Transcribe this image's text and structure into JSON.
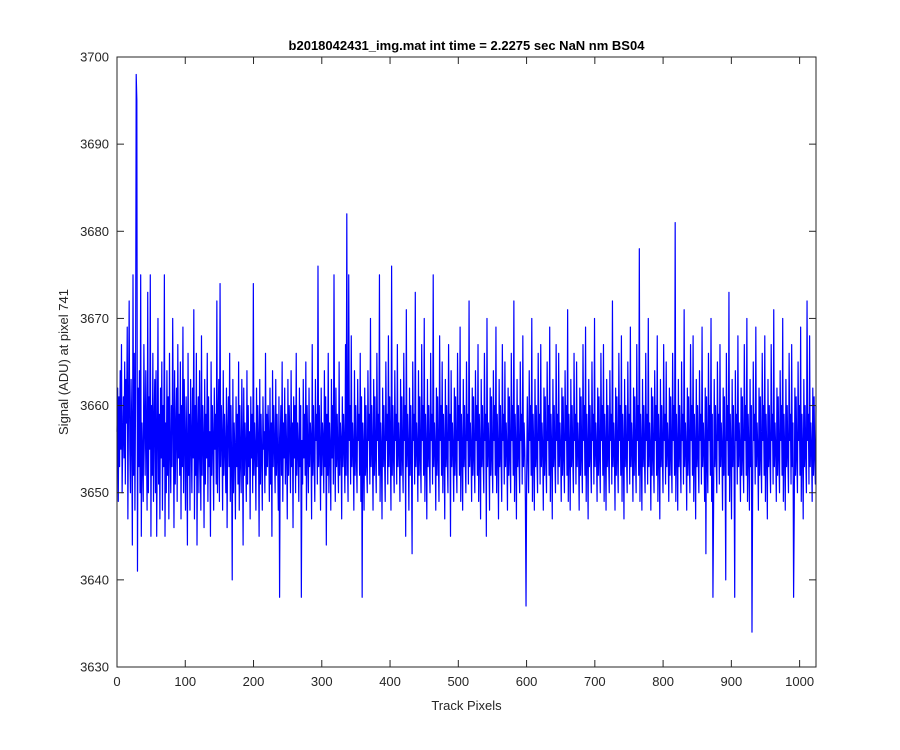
{
  "chart_data": {
    "type": "line",
    "title": "b2018042431_img.mat int time = 2.2275 sec  NaN nm BS04",
    "xlabel": "Track Pixels",
    "ylabel": "Signal (ADU) at pixel 741",
    "xlim": [
      0,
      1024
    ],
    "ylim": [
      3630,
      3700
    ],
    "xticks": [
      0,
      100,
      200,
      300,
      400,
      500,
      600,
      700,
      800,
      900,
      1000
    ],
    "yticks": [
      3630,
      3640,
      3650,
      3660,
      3670,
      3680,
      3690,
      3700
    ],
    "grid": false,
    "series": [
      {
        "color": "#0000ff",
        "y": [
          3657,
          3662,
          3649,
          3661,
          3653,
          3664,
          3655,
          3667,
          3650,
          3656,
          3661,
          3654,
          3665,
          3651,
          3663,
          3658,
          3669,
          3647,
          3660,
          3672,
          3655,
          3650,
          3663,
          3657,
          3644,
          3675,
          3652,
          3666,
          3648,
          3661,
          3698,
          3695,
          3641,
          3662,
          3653,
          3664,
          3650,
          3675,
          3645,
          3658,
          3654,
          3649,
          3667,
          3658,
          3652,
          3664,
          3656,
          3648,
          3673,
          3650,
          3661,
          3655,
          3675,
          3645,
          3660,
          3652,
          3666,
          3649,
          3658,
          3663,
          3650,
          3664,
          3645,
          3656,
          3670,
          3651,
          3659,
          3647,
          3662,
          3654,
          3665,
          3648,
          3660,
          3653,
          3675,
          3645,
          3658,
          3650,
          3664,
          3652,
          3661,
          3647,
          3666,
          3655,
          3650,
          3660,
          3653,
          3670,
          3658,
          3646,
          3664,
          3651,
          3657,
          3662,
          3649,
          3667,
          3654,
          3659,
          3652,
          3665,
          3647,
          3660,
          3653,
          3669,
          3650,
          3663,
          3656,
          3648,
          3661,
          3655,
          3644,
          3666,
          3652,
          3659,
          3648,
          3663,
          3656,
          3650,
          3662,
          3654,
          3671,
          3647,
          3660,
          3652,
          3666,
          3644,
          3657,
          3661,
          3650,
          3664,
          3655,
          3648,
          3668,
          3652,
          3660,
          3656,
          3646,
          3663,
          3651,
          3659,
          3654,
          3666,
          3649,
          3661,
          3653,
          3657,
          3645,
          3665,
          3652,
          3660,
          3656,
          3648,
          3662,
          3655,
          3659,
          3651,
          3672,
          3650,
          3658,
          3663,
          3649,
          3674,
          3653,
          3660,
          3656,
          3648,
          3664,
          3652,
          3659,
          3655,
          3650,
          3662,
          3646,
          3657,
          3661,
          3653,
          3666,
          3649,
          3660,
          3654,
          3640,
          3663,
          3650,
          3658,
          3655,
          3647,
          3661,
          3653,
          3659,
          3651,
          3665,
          3648,
          3660,
          3654,
          3650,
          3663,
          3656,
          3644,
          3662,
          3652,
          3658,
          3655,
          3649,
          3664,
          3651,
          3660,
          3653,
          3657,
          3647,
          3661,
          3654,
          3659,
          3650,
          3674,
          3652,
          3658,
          3655,
          3648,
          3662,
          3653,
          3660,
          3656,
          3645,
          3663,
          3651,
          3659,
          3654,
          3648,
          3661,
          3655,
          3657,
          3650,
          3666,
          3652,
          3659,
          3653,
          3660,
          3656,
          3649,
          3662,
          3651,
          3658,
          3645,
          3664,
          3653,
          3660,
          3655,
          3650,
          3663,
          3652,
          3659,
          3654,
          3648,
          3661,
          3638,
          3656,
          3660,
          3652,
          3665,
          3649,
          3658,
          3654,
          3662,
          3651,
          3659,
          3655,
          3647,
          3663,
          3652,
          3660,
          3656,
          3650,
          3664,
          3653,
          3658,
          3646,
          3661,
          3654,
          3660,
          3650,
          3666,
          3652,
          3658,
          3655,
          3649,
          3662,
          3653,
          3660,
          3638,
          3656,
          3651,
          3663,
          3654,
          3659,
          3652,
          3665,
          3648,
          3660,
          3655,
          3650,
          3662,
          3653,
          3658,
          3656,
          3647,
          3667,
          3652,
          3660,
          3654,
          3649,
          3663,
          3656,
          3659,
          3651,
          3676,
          3653,
          3660,
          3655,
          3648,
          3662,
          3652,
          3658,
          3656,
          3650,
          3664,
          3653,
          3661,
          3644,
          3659,
          3652,
          3666,
          3650,
          3658,
          3655,
          3648,
          3663,
          3654,
          3660,
          3651,
          3675,
          3656,
          3649,
          3662,
          3653,
          3659,
          3654,
          3650,
          3665,
          3652,
          3658,
          3656,
          3647,
          3661,
          3653,
          3659,
          3655,
          3650,
          3667,
          3652,
          3682,
          3654,
          3649,
          3675,
          3656,
          3660,
          3651,
          3668,
          3653,
          3658,
          3655,
          3648,
          3664,
          3652,
          3660,
          3654,
          3650,
          3663,
          3656,
          3659,
          3652,
          3666,
          3649,
          3661,
          3638,
          3658,
          3655,
          3648,
          3662,
          3652,
          3660,
          3653,
          3650,
          3664,
          3656,
          3659,
          3651,
          3670,
          3653,
          3660,
          3655,
          3648,
          3663,
          3652,
          3661,
          3654,
          3650,
          3666,
          3656,
          3659,
          3652,
          3675,
          3649,
          3658,
          3655,
          3647,
          3662,
          3653,
          3660,
          3654,
          3649,
          3665,
          3656,
          3659,
          3651,
          3668,
          3653,
          3661,
          3655,
          3648,
          3676,
          3652,
          3660,
          3654,
          3650,
          3664,
          3656,
          3659,
          3651,
          3667,
          3653,
          3658,
          3655,
          3649,
          3663,
          3652,
          3661,
          3654,
          3650,
          3666,
          3656,
          3660,
          3645,
          3671,
          3653,
          3659,
          3655,
          3648,
          3662,
          3652,
          3660,
          3654,
          3643,
          3665,
          3656,
          3659,
          3651,
          3673,
          3653,
          3658,
          3655,
          3649,
          3664,
          3652,
          3661,
          3654,
          3650,
          3667,
          3656,
          3660,
          3652,
          3670,
          3649,
          3659,
          3655,
          3647,
          3663,
          3653,
          3660,
          3654,
          3650,
          3666,
          3656,
          3659,
          3651,
          3675,
          3653,
          3658,
          3655,
          3648,
          3662,
          3652,
          3661,
          3654,
          3649,
          3668,
          3656,
          3660,
          3652,
          3665,
          3650,
          3659,
          3655,
          3647,
          3663,
          3653,
          3660,
          3654,
          3650,
          3667,
          3656,
          3659,
          3645,
          3664,
          3653,
          3658,
          3655,
          3649,
          3662,
          3652,
          3661,
          3654,
          3650,
          3666,
          3656,
          3660,
          3652,
          3669,
          3649,
          3659,
          3655,
          3648,
          3663,
          3653,
          3660,
          3654,
          3650,
          3665,
          3656,
          3659,
          3651,
          3672,
          3653,
          3658,
          3655,
          3649,
          3662,
          3652,
          3661,
          3654,
          3650,
          3664,
          3656,
          3660,
          3652,
          3667,
          3649,
          3659,
          3655,
          3647,
          3663,
          3653,
          3660,
          3654,
          3650,
          3666,
          3656,
          3659,
          3645,
          3670,
          3653,
          3658,
          3655,
          3648,
          3662,
          3652,
          3661,
          3654,
          3650,
          3664,
          3656,
          3660,
          3652,
          3669,
          3650,
          3659,
          3655,
          3647,
          3663,
          3653,
          3660,
          3654,
          3649,
          3667,
          3656,
          3659,
          3651,
          3665,
          3653,
          3658,
          3655,
          3648,
          3662,
          3652,
          3661,
          3654,
          3650,
          3666,
          3656,
          3660,
          3652,
          3672,
          3649,
          3659,
          3655,
          3647,
          3663,
          3653,
          3660,
          3654,
          3650,
          3665,
          3656,
          3659,
          3651,
          3668,
          3653,
          3658,
          3655,
          3649,
          3637,
          3652,
          3661,
          3654,
          3650,
          3664,
          3656,
          3660,
          3652,
          3670,
          3649,
          3659,
          3655,
          3648,
          3663,
          3653,
          3660,
          3654,
          3650,
          3666,
          3656,
          3659,
          3651,
          3667,
          3653,
          3658,
          3655,
          3648,
          3662,
          3652,
          3661,
          3654,
          3650,
          3665,
          3656,
          3660,
          3652,
          3669,
          3649,
          3659,
          3655,
          3647,
          3663,
          3653,
          3660,
          3654,
          3650,
          3667,
          3656,
          3659,
          3651,
          3666,
          3653,
          3658,
          3655,
          3649,
          3662,
          3652,
          3661,
          3654,
          3650,
          3664,
          3656,
          3660,
          3652,
          3671,
          3649,
          3659,
          3655,
          3648,
          3663,
          3653,
          3660,
          3654,
          3650,
          3666,
          3656,
          3659,
          3651,
          3665,
          3653,
          3658,
          3655,
          3648,
          3662,
          3652,
          3661,
          3654,
          3650,
          3667,
          3656,
          3660,
          3652,
          3669,
          3649,
          3659,
          3655,
          3647,
          3663,
          3653,
          3660,
          3654,
          3650,
          3665,
          3656,
          3659,
          3651,
          3670,
          3653,
          3658,
          3655,
          3649,
          3662,
          3652,
          3661,
          3654,
          3650,
          3666,
          3656,
          3660,
          3652,
          3667,
          3649,
          3659,
          3655,
          3648,
          3663,
          3653,
          3660,
          3654,
          3650,
          3664,
          3656,
          3659,
          3651,
          3672,
          3653,
          3658,
          3655,
          3648,
          3662,
          3652,
          3661,
          3654,
          3650,
          3666,
          3656,
          3660,
          3652,
          3668,
          3649,
          3659,
          3655,
          3647,
          3663,
          3653,
          3660,
          3654,
          3650,
          3665,
          3656,
          3659,
          3651,
          3669,
          3653,
          3658,
          3655,
          3649,
          3662,
          3652,
          3661,
          3654,
          3650,
          3667,
          3656,
          3660,
          3652,
          3678,
          3649,
          3659,
          3655,
          3648,
          3663,
          3653,
          3660,
          3654,
          3650,
          3666,
          3656,
          3659,
          3651,
          3670,
          3653,
          3658,
          3655,
          3648,
          3662,
          3652,
          3661,
          3654,
          3650,
          3664,
          3656,
          3660,
          3652,
          3668,
          3649,
          3659,
          3655,
          3647,
          3663,
          3653,
          3660,
          3654,
          3650,
          3667,
          3656,
          3659,
          3651,
          3665,
          3653,
          3658,
          3655,
          3649,
          3662,
          3652,
          3661,
          3654,
          3650,
          3666,
          3656,
          3660,
          3652,
          3681,
          3649,
          3659,
          3655,
          3648,
          3663,
          3653,
          3660,
          3654,
          3650,
          3665,
          3656,
          3659,
          3651,
          3671,
          3653,
          3658,
          3655,
          3648,
          3662,
          3652,
          3661,
          3654,
          3650,
          3667,
          3656,
          3660,
          3652,
          3668,
          3649,
          3659,
          3655,
          3647,
          3663,
          3653,
          3660,
          3654,
          3650,
          3664,
          3656,
          3659,
          3651,
          3669,
          3653,
          3658,
          3655,
          3649,
          3662,
          3643,
          3661,
          3654,
          3650,
          3666,
          3656,
          3660,
          3652,
          3670,
          3649,
          3659,
          3638,
          3648,
          3663,
          3653,
          3660,
          3654,
          3650,
          3665,
          3656,
          3659,
          3651,
          3667,
          3653,
          3658,
          3655,
          3648,
          3662,
          3652,
          3661,
          3654,
          3640,
          3666,
          3656,
          3660,
          3652,
          3673,
          3649,
          3659,
          3655,
          3647,
          3663,
          3653,
          3660,
          3654,
          3638,
          3664,
          3656,
          3659,
          3651,
          3668,
          3653,
          3658,
          3655,
          3649,
          3662,
          3652,
          3661,
          3654,
          3650,
          3667,
          3656,
          3660,
          3652,
          3670,
          3649,
          3659,
          3655,
          3648,
          3663,
          3653,
          3660,
          3634,
          3650,
          3665,
          3656,
          3659,
          3651,
          3669,
          3653,
          3658,
          3655,
          3648,
          3662,
          3652,
          3661,
          3654,
          3650,
          3666,
          3656,
          3660,
          3652,
          3668,
          3649,
          3659,
          3655,
          3647,
          3663,
          3653,
          3660,
          3654,
          3650,
          3667,
          3656,
          3659,
          3651,
          3671,
          3653,
          3658,
          3655,
          3649,
          3662,
          3652,
          3661,
          3654,
          3650,
          3664,
          3656,
          3660,
          3652,
          3670,
          3649,
          3659,
          3655,
          3648,
          3663,
          3653,
          3660,
          3654,
          3650,
          3666,
          3656,
          3659,
          3651,
          3667,
          3653,
          3658,
          3638,
          3648,
          3662,
          3652,
          3661,
          3654,
          3650,
          3665,
          3656,
          3660,
          3652,
          3669,
          3649,
          3659,
          3655,
          3647,
          3663,
          3653,
          3660,
          3654,
          3650,
          3672,
          3656,
          3659,
          3651,
          3668,
          3653,
          3658,
          3655,
          3649,
          3662,
          3652,
          3661,
          3654,
          3651,
          3660
        ]
      }
    ]
  }
}
